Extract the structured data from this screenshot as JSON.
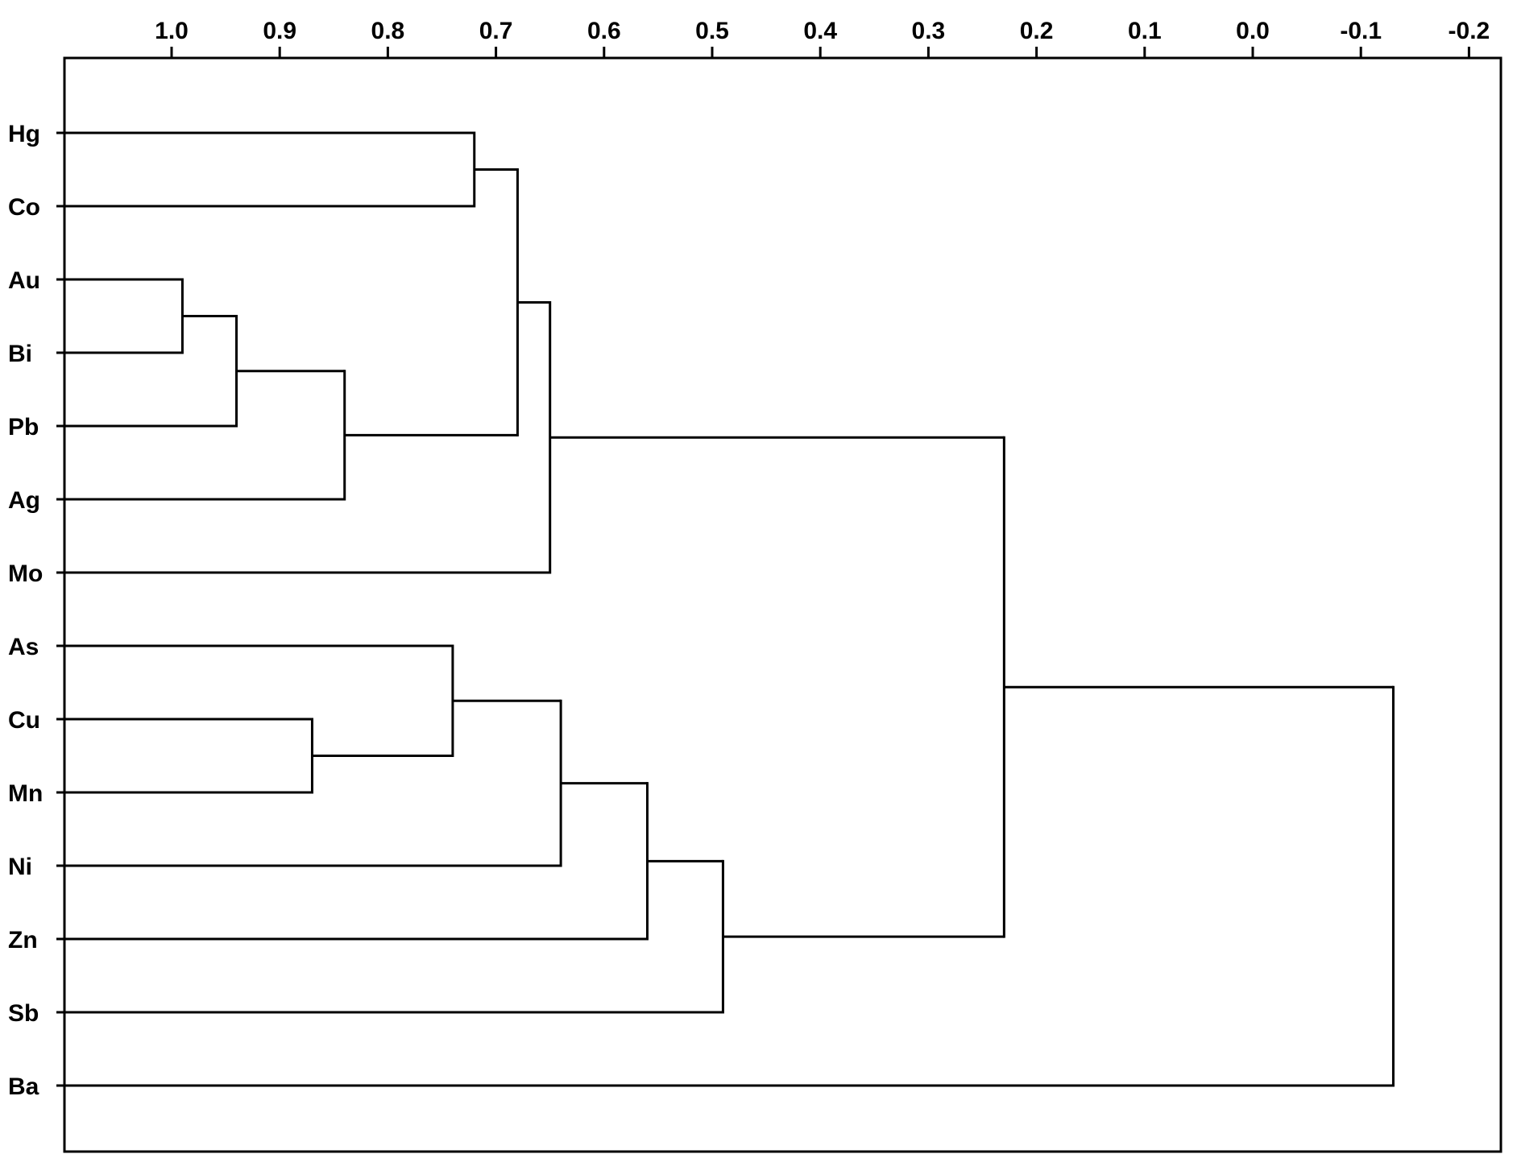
{
  "chart_data": {
    "type": "dendrogram",
    "title": "",
    "xlabel": "",
    "ylabel": "",
    "x_axis_position": "top",
    "x_range": [
      1.1,
      -0.22
    ],
    "x_ticks": [
      1.0,
      0.9,
      0.8,
      0.7,
      0.6,
      0.5,
      0.4,
      0.3,
      0.2,
      0.1,
      0.0,
      -0.1,
      -0.2
    ],
    "x_tick_labels": [
      "1.0",
      "0.9",
      "0.8",
      "0.7",
      "0.6",
      "0.5",
      "0.4",
      "0.3",
      "0.2",
      "0.1",
      "0.0",
      "-0.1",
      "-0.2"
    ],
    "leaves": [
      "Hg",
      "Co",
      "Au",
      "Bi",
      "Pb",
      "Ag",
      "Mo",
      "As",
      "Cu",
      "Mn",
      "Ni",
      "Zn",
      "Sb",
      "Ba"
    ],
    "merges": [
      {
        "a": "Au",
        "b": "Bi",
        "height": 0.99,
        "id": "m1"
      },
      {
        "a": "Cu",
        "b": "Mn",
        "height": 0.87,
        "id": "m2"
      },
      {
        "a": "m1",
        "b": "Pb",
        "height": 0.94,
        "id": "m3"
      },
      {
        "a": "m3",
        "b": "Ag",
        "height": 0.84,
        "id": "m4"
      },
      {
        "a": "As",
        "b": "m2",
        "height": 0.74,
        "id": "m5"
      },
      {
        "a": "Hg",
        "b": "Co",
        "height": 0.72,
        "id": "m6"
      },
      {
        "a": "m6",
        "b": "m4",
        "height": 0.68,
        "id": "m7"
      },
      {
        "a": "m7",
        "b": "Mo",
        "height": 0.65,
        "id": "m8"
      },
      {
        "a": "m5",
        "b": "Ni",
        "height": 0.64,
        "id": "m9"
      },
      {
        "a": "m9",
        "b": "Zn",
        "height": 0.56,
        "id": "m10"
      },
      {
        "a": "m10",
        "b": "Sb",
        "height": 0.49,
        "id": "m11"
      },
      {
        "a": "m8",
        "b": "m11",
        "height": 0.23,
        "id": "m12"
      },
      {
        "a": "m12",
        "b": "Ba",
        "height": -0.13,
        "id": "m13"
      }
    ],
    "leaf_height": 1.1,
    "grid": false,
    "legend": "none"
  }
}
